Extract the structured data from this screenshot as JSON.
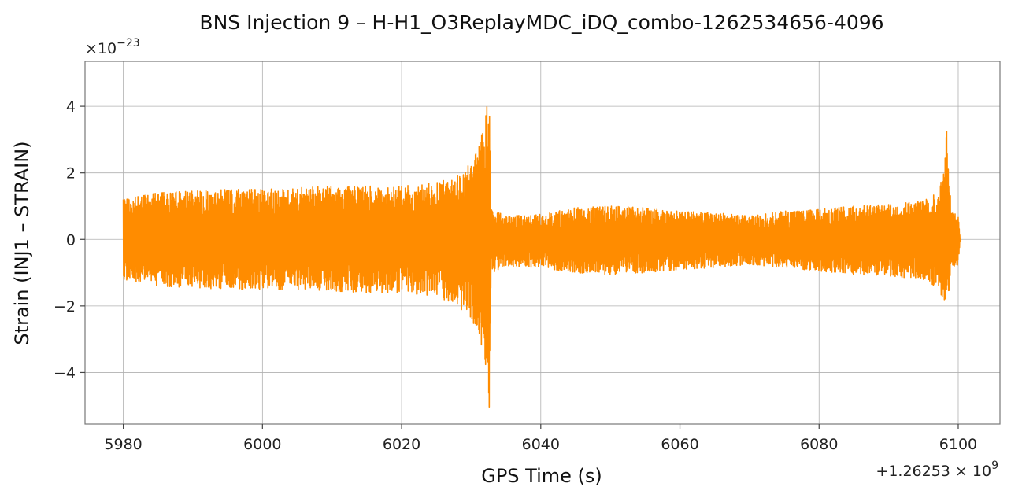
{
  "chart_data": {
    "type": "line",
    "title": "BNS Injection 9 – H-H1_O3ReplayMDC_iDQ_combo-1262534656-4096",
    "xlabel": "GPS Time (s)",
    "ylabel": "Strain (INJ1 – STRAIN)",
    "x_offset_label": "+1.26253 × 10",
    "x_offset_exponent": "9",
    "y_scale_label": "×10",
    "y_scale_exponent": "−23",
    "xlim": [
      5974.5,
      6106.0
    ],
    "ylim": [
      -5.55,
      5.35
    ],
    "x_ticks": [
      5980,
      6000,
      6020,
      6040,
      6060,
      6080,
      6100
    ],
    "x_tick_labels": [
      "5980",
      "6000",
      "6020",
      "6040",
      "6060",
      "6080",
      "6100"
    ],
    "y_ticks": [
      -4,
      -2,
      0,
      2,
      4
    ],
    "y_tick_labels": [
      "−4",
      "−2",
      "0",
      "2",
      "4"
    ],
    "grid": true,
    "line_color": "#ff8c00",
    "series": [
      {
        "x_range": [
          5980,
          6100.3
        ],
        "envelope_x": [
          5980,
          5985,
          5990,
          5995,
          6000,
          6005,
          6010,
          6015,
          6020,
          6025,
          6028,
          6030,
          6031,
          6032,
          6032.6,
          6032.8,
          6033,
          6035,
          6040,
          6045,
          6050,
          6055,
          6060,
          6065,
          6070,
          6075,
          6080,
          6085,
          6090,
          6095,
          6097,
          6098,
          6098.3,
          6099,
          6100,
          6100.3
        ],
        "envelope_upper": [
          1.2,
          1.4,
          1.45,
          1.5,
          1.5,
          1.55,
          1.6,
          1.6,
          1.6,
          1.7,
          1.9,
          2.3,
          2.7,
          3.6,
          4.85,
          2.0,
          0.9,
          0.7,
          0.75,
          0.95,
          1.0,
          0.95,
          0.85,
          0.8,
          0.7,
          0.85,
          0.9,
          1.0,
          1.05,
          1.15,
          1.4,
          2.2,
          3.65,
          0.85,
          0.7,
          0.0
        ],
        "envelope_lower": [
          -1.2,
          -1.4,
          -1.45,
          -1.5,
          -1.5,
          -1.5,
          -1.55,
          -1.6,
          -1.6,
          -1.7,
          -2.0,
          -2.4,
          -2.9,
          -3.6,
          -5.05,
          -2.0,
          -1.0,
          -0.8,
          -0.85,
          -1.0,
          -1.05,
          -1.0,
          -0.9,
          -0.85,
          -0.75,
          -0.85,
          -0.95,
          -1.05,
          -1.1,
          -1.2,
          -1.5,
          -1.8,
          -2.3,
          -0.9,
          -0.75,
          0.0
        ]
      }
    ]
  }
}
